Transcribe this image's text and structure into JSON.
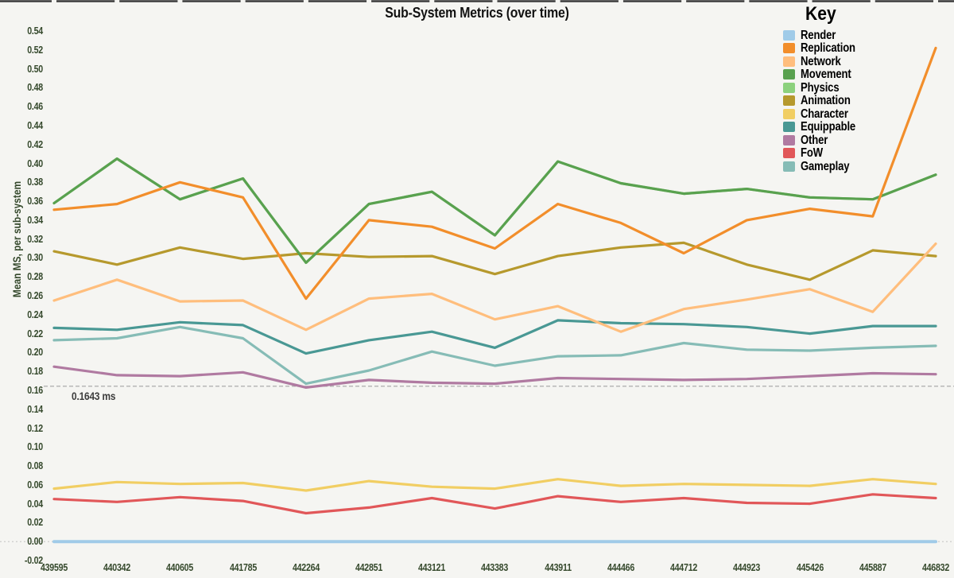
{
  "title": "Sub-System Metrics (over time)",
  "y_axis": {
    "label": "Mean MS, per sub-system",
    "ticks": [
      "0.54",
      "0.52",
      "0.50",
      "0.48",
      "0.46",
      "0.44",
      "0.42",
      "0.40",
      "0.38",
      "0.36",
      "0.34",
      "0.32",
      "0.30",
      "0.28",
      "0.26",
      "0.24",
      "0.22",
      "0.20",
      "0.18",
      "0.16",
      "0.14",
      "0.12",
      "0.10",
      "0.08",
      "0.06",
      "0.04",
      "0.02",
      "0.00",
      "-0.02"
    ],
    "tick_values": [
      0.54,
      0.52,
      0.5,
      0.48,
      0.46,
      0.44,
      0.42,
      0.4,
      0.38,
      0.36,
      0.34,
      0.32,
      0.3,
      0.28,
      0.26,
      0.24,
      0.22,
      0.2,
      0.18,
      0.16,
      0.14,
      0.12,
      0.1,
      0.08,
      0.06,
      0.04,
      0.02,
      0.0,
      -0.02
    ]
  },
  "threshold": {
    "value": 0.1643,
    "label": "0.1643 ms"
  },
  "legend": {
    "title": "Key",
    "entries": [
      {
        "label": "Render",
        "color": "#a0cbe8"
      },
      {
        "label": "Replication",
        "color": "#f28e2b"
      },
      {
        "label": "Network",
        "color": "#ffbe7d"
      },
      {
        "label": "Movement",
        "color": "#59a14f"
      },
      {
        "label": "Physics",
        "color": "#8cd17d"
      },
      {
        "label": "Animation",
        "color": "#b6992d"
      },
      {
        "label": "Character",
        "color": "#f1ce63"
      },
      {
        "label": "Equippable",
        "color": "#499894"
      },
      {
        "label": "Other",
        "color": "#b07aa1"
      },
      {
        "label": "FoW",
        "color": "#e15759"
      },
      {
        "label": "Gameplay",
        "color": "#86bcb6"
      }
    ]
  },
  "chart_data": {
    "type": "line",
    "title": "Sub-System Metrics (over time)",
    "xlabel": "",
    "ylabel": "Mean MS, per sub-system",
    "ylim": [
      -0.02,
      0.54
    ],
    "grid": false,
    "legend_position": "top-right",
    "threshold_line": {
      "value": 0.1643,
      "label": "0.1643 ms",
      "style": "dashed-gray"
    },
    "categories": [
      "439595",
      "440342",
      "440605",
      "441785",
      "442264",
      "442851",
      "443121",
      "443383",
      "443911",
      "444466",
      "444712",
      "444923",
      "445426",
      "445887",
      "446832"
    ],
    "series": [
      {
        "name": "Render",
        "color": "#a0cbe8",
        "values": [
          0.0,
          0.0,
          0.0,
          0.0,
          0.0,
          0.0,
          0.0,
          0.0,
          0.0,
          0.0,
          0.0,
          0.0,
          0.0,
          0.0,
          0.0
        ]
      },
      {
        "name": "Replication",
        "color": "#f28e2b",
        "values": [
          0.351,
          0.357,
          0.38,
          0.364,
          0.257,
          0.34,
          0.333,
          0.31,
          0.357,
          0.337,
          0.305,
          0.34,
          0.352,
          0.344,
          0.522
        ]
      },
      {
        "name": "Network",
        "color": "#ffbe7d",
        "values": [
          0.255,
          0.277,
          0.254,
          0.255,
          0.224,
          0.257,
          0.262,
          0.235,
          0.249,
          0.222,
          0.246,
          0.256,
          0.267,
          0.243,
          0.315
        ]
      },
      {
        "name": "Movement",
        "color": "#59a14f",
        "values": [
          0.358,
          0.405,
          0.362,
          0.384,
          0.295,
          0.357,
          0.37,
          0.324,
          0.402,
          0.379,
          0.368,
          0.373,
          0.364,
          0.362,
          0.388
        ]
      },
      {
        "name": "Physics",
        "color": "#8cd17d",
        "values": [
          0.358,
          0.405,
          0.362,
          0.384,
          0.295,
          0.357,
          0.37,
          0.324,
          0.402,
          0.379,
          0.368,
          0.373,
          0.364,
          0.362,
          0.388
        ],
        "note": "not visibly distinct in screenshot; hidden behind Movement line"
      },
      {
        "name": "Animation",
        "color": "#b6992d",
        "values": [
          0.307,
          0.293,
          0.311,
          0.299,
          0.305,
          0.301,
          0.302,
          0.283,
          0.302,
          0.311,
          0.316,
          0.293,
          0.277,
          0.308,
          0.302
        ]
      },
      {
        "name": "Character",
        "color": "#f1ce63",
        "values": [
          0.056,
          0.063,
          0.061,
          0.062,
          0.054,
          0.064,
          0.058,
          0.056,
          0.066,
          0.059,
          0.061,
          0.06,
          0.059,
          0.066,
          0.061
        ]
      },
      {
        "name": "Equippable",
        "color": "#499894",
        "values": [
          0.226,
          0.224,
          0.232,
          0.229,
          0.199,
          0.213,
          0.222,
          0.205,
          0.234,
          0.231,
          0.23,
          0.227,
          0.22,
          0.228,
          0.228
        ]
      },
      {
        "name": "Other",
        "color": "#b07aa1",
        "values": [
          0.185,
          0.176,
          0.175,
          0.179,
          0.163,
          0.171,
          0.168,
          0.167,
          0.173,
          0.172,
          0.171,
          0.172,
          0.175,
          0.178,
          0.177
        ]
      },
      {
        "name": "FoW",
        "color": "#e15759",
        "values": [
          0.045,
          0.042,
          0.047,
          0.043,
          0.03,
          0.036,
          0.046,
          0.035,
          0.048,
          0.042,
          0.046,
          0.041,
          0.04,
          0.05,
          0.046
        ]
      },
      {
        "name": "Gameplay",
        "color": "#86bcb6",
        "values": [
          0.213,
          0.215,
          0.227,
          0.215,
          0.167,
          0.181,
          0.201,
          0.186,
          0.196,
          0.197,
          0.21,
          0.203,
          0.202,
          0.205,
          0.207
        ]
      }
    ],
    "draw_order": [
      "Render",
      "Physics",
      "Other",
      "FoW",
      "Character",
      "Gameplay",
      "Equippable",
      "Animation",
      "Network",
      "Movement",
      "Replication"
    ]
  },
  "colors": {
    "background": "#f5f5f2",
    "axis_text": "#35492c",
    "title_text": "#111111",
    "threshold_line": "#a3a3a3",
    "zero_gridline": "#cccccc",
    "top_border": "#3a3a3a"
  }
}
